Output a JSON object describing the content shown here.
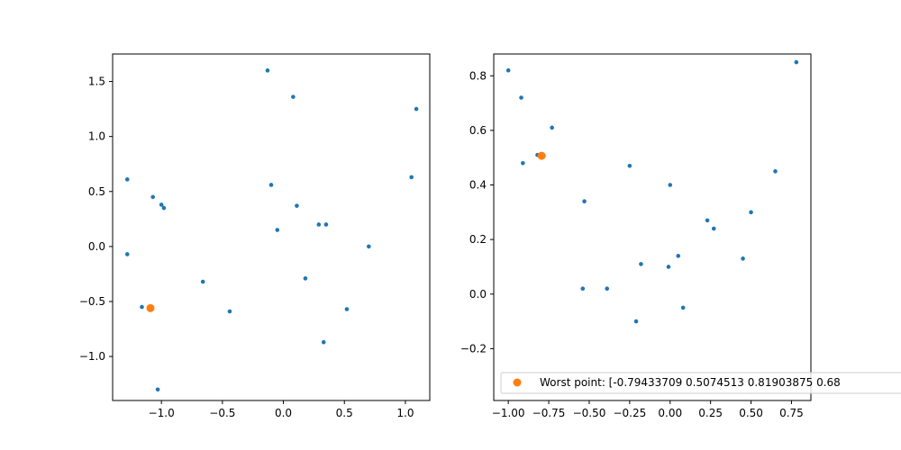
{
  "chart_data": [
    {
      "type": "scatter",
      "title": "",
      "xlabel": "",
      "ylabel": "",
      "xlim": [
        -1.4,
        1.2
      ],
      "ylim": [
        -1.4,
        1.75
      ],
      "xticks": [
        -1.0,
        -0.5,
        0.0,
        0.5,
        1.0
      ],
      "xtick_labels": [
        "−1.0",
        "−0.5",
        "0.0",
        "0.5",
        "1.0"
      ],
      "yticks": [
        -1.0,
        -0.5,
        0.0,
        0.5,
        1.0,
        1.5
      ],
      "ytick_labels": [
        "−1.0",
        "−0.5",
        "0.0",
        "0.5",
        "1.0",
        "1.5"
      ],
      "grid": false,
      "series": [
        {
          "color": "#1f77b4",
          "marker_size": "small",
          "points": [
            [
              -0.13,
              1.6
            ],
            [
              0.08,
              1.36
            ],
            [
              1.09,
              1.25
            ],
            [
              -1.28,
              0.61
            ],
            [
              1.05,
              0.63
            ],
            [
              -1.07,
              0.45
            ],
            [
              -0.1,
              0.56
            ],
            [
              -1.0,
              0.38
            ],
            [
              -0.98,
              0.35
            ],
            [
              0.11,
              0.37
            ],
            [
              0.29,
              0.2
            ],
            [
              0.35,
              0.2
            ],
            [
              -0.05,
              0.15
            ],
            [
              -1.28,
              -0.07
            ],
            [
              0.7,
              0.0
            ],
            [
              0.18,
              -0.29
            ],
            [
              -0.66,
              -0.32
            ],
            [
              -1.16,
              -0.55
            ],
            [
              0.52,
              -0.57
            ],
            [
              -0.44,
              -0.59
            ],
            [
              0.33,
              -0.87
            ],
            [
              -1.03,
              -1.3
            ]
          ]
        },
        {
          "color": "#ff7f0e",
          "marker_size": "large",
          "points": [
            [
              -1.09,
              -0.56
            ]
          ]
        }
      ]
    },
    {
      "type": "scatter",
      "title": "",
      "xlabel": "",
      "ylabel": "",
      "xlim": [
        -1.09,
        0.87
      ],
      "ylim": [
        -0.39,
        0.88
      ],
      "xticks": [
        -1.0,
        -0.75,
        -0.5,
        -0.25,
        0.0,
        0.25,
        0.5,
        0.75
      ],
      "xtick_labels": [
        "−1.00",
        "−0.75",
        "−0.50",
        "−0.25",
        "0.00",
        "0.25",
        "0.50",
        "0.75"
      ],
      "yticks": [
        -0.2,
        0.0,
        0.2,
        0.4,
        0.6,
        0.8
      ],
      "ytick_labels": [
        "−0.2",
        "0.0",
        "0.2",
        "0.4",
        "0.6",
        "0.8"
      ],
      "grid": false,
      "legend_position": "lower-left",
      "series": [
        {
          "color": "#1f77b4",
          "marker_size": "small",
          "points": [
            [
              -1.0,
              0.82
            ],
            [
              0.78,
              0.85
            ],
            [
              -0.92,
              0.72
            ],
            [
              -0.73,
              0.61
            ],
            [
              -0.91,
              0.48
            ],
            [
              -0.82,
              0.51
            ],
            [
              -0.25,
              0.47
            ],
            [
              0.0,
              0.4
            ],
            [
              -0.53,
              0.34
            ],
            [
              0.65,
              0.45
            ],
            [
              0.5,
              0.3
            ],
            [
              0.23,
              0.27
            ],
            [
              0.27,
              0.24
            ],
            [
              0.45,
              0.13
            ],
            [
              0.05,
              0.14
            ],
            [
              -0.18,
              0.11
            ],
            [
              -0.01,
              0.1
            ],
            [
              -0.54,
              0.02
            ],
            [
              -0.39,
              0.02
            ],
            [
              0.08,
              -0.05
            ],
            [
              -0.21,
              -0.1
            ]
          ]
        },
        {
          "name": "Worst point: [-0.79433709  0.5074513   0.81903875  0.68",
          "color": "#ff7f0e",
          "marker_size": "large",
          "points": [
            [
              -0.794,
              0.507
            ]
          ]
        }
      ]
    }
  ]
}
